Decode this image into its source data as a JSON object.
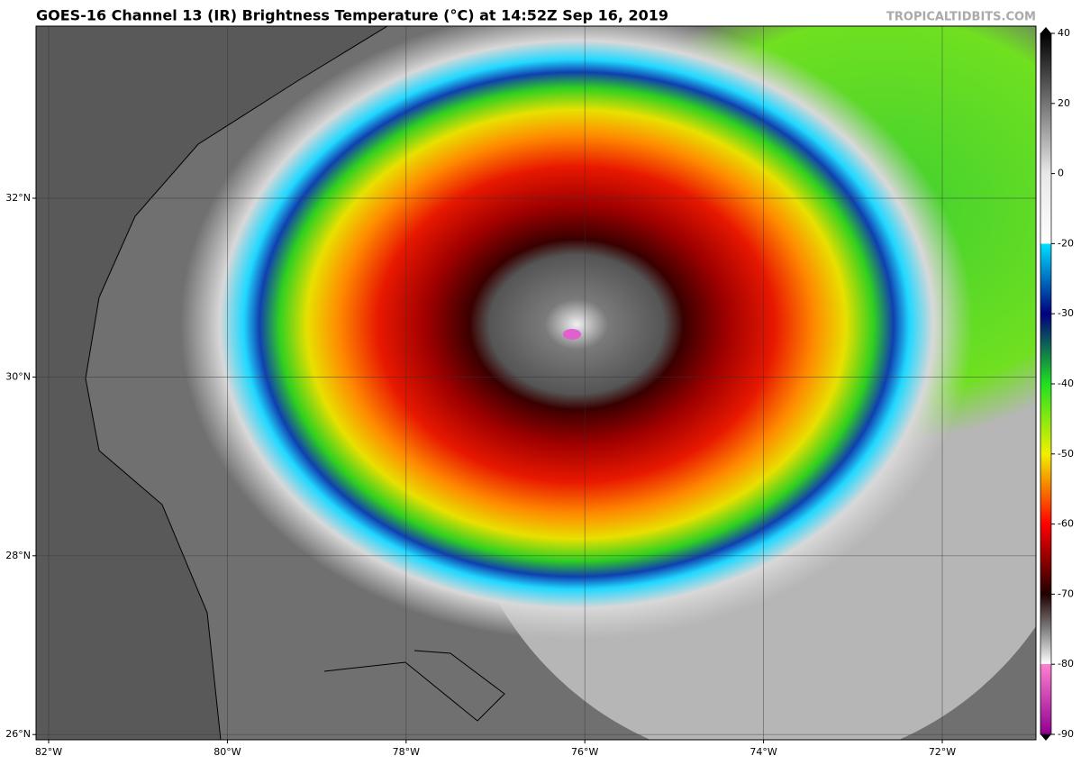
{
  "header": {
    "title": "GOES-16 Channel 13 (IR) Brightness Temperature (°C) at 14:52Z Sep 16, 2019",
    "watermark": "TROPICALTIDBITS.COM"
  },
  "map": {
    "lat_labels": [
      "32°N",
      "30°N",
      "28°N",
      "26°N"
    ],
    "lon_labels": [
      "82°W",
      "80°W",
      "78°W",
      "76°W",
      "74°W",
      "72°W"
    ]
  },
  "colorbar": {
    "ticks": [
      40,
      20,
      0,
      -20,
      -30,
      -40,
      -50,
      -60,
      -70,
      -80,
      -90
    ]
  }
}
